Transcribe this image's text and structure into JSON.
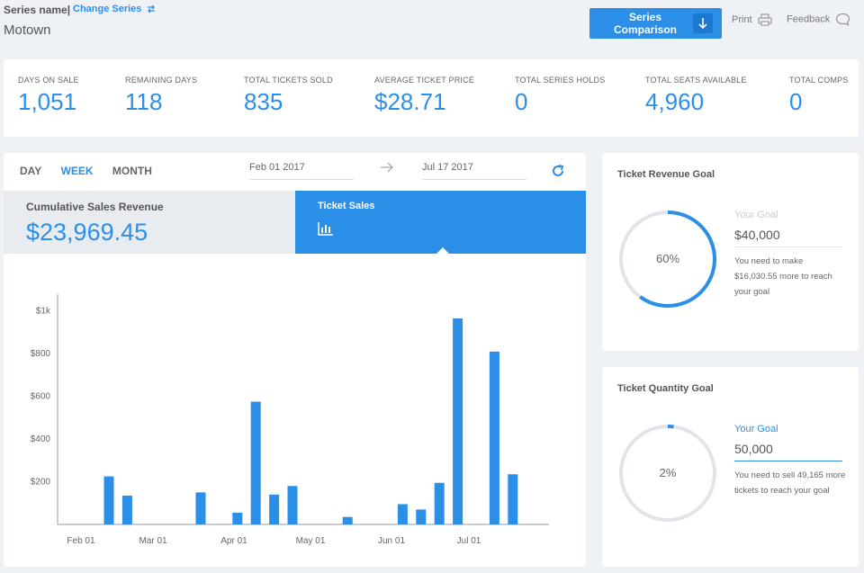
{
  "header": {
    "series_label": "Series name|",
    "change_series": "Change Series",
    "series_name": "Motown",
    "compare_line1": "Series",
    "compare_line2": "Comparison",
    "print": "Print",
    "feedback": "Feedback"
  },
  "stats": [
    {
      "label": "DAYS ON SALE",
      "value": "1,051"
    },
    {
      "label": "REMAINING DAYS",
      "value": "118"
    },
    {
      "label": "TOTAL TICKETS SOLD",
      "value": "835"
    },
    {
      "label": "AVERAGE TICKET PRICE",
      "value": "$28.71"
    },
    {
      "label": "TOTAL SERIES HOLDS",
      "value": "0"
    },
    {
      "label": "TOTAL SEATS AVAILABLE",
      "value": "4,960"
    },
    {
      "label": "TOTAL COMPS",
      "value": "0"
    }
  ],
  "panel": {
    "tabs": [
      "DAY",
      "WEEK",
      "MONTH"
    ],
    "active_tab": "WEEK",
    "start_date": "Feb 01 2017",
    "end_date": "Jul 17 2017",
    "left_tab_title": "Cumulative Sales Revenue",
    "left_tab_value": "$23,969.45",
    "right_tab_title": "Ticket Sales"
  },
  "chart_data": {
    "type": "bar",
    "yticks": [
      "$200",
      "$400",
      "$600",
      "$800",
      "$1k"
    ],
    "ylim": [
      0,
      1100
    ],
    "xticks": [
      "Feb 01",
      "Mar 01",
      "Apr 01",
      "May 01",
      "Jun 01",
      "Jul 01"
    ],
    "xlabel": "",
    "ylabel": "",
    "bars": [
      {
        "week": 3,
        "value": 225
      },
      {
        "week": 4,
        "value": 135
      },
      {
        "week": 8,
        "value": 150
      },
      {
        "week": 10,
        "value": 55
      },
      {
        "week": 11,
        "value": 575
      },
      {
        "week": 12,
        "value": 140
      },
      {
        "week": 13,
        "value": 180
      },
      {
        "week": 16,
        "value": 35
      },
      {
        "week": 19,
        "value": 95
      },
      {
        "week": 20,
        "value": 70
      },
      {
        "week": 21,
        "value": 195
      },
      {
        "week": 22,
        "value": 965
      },
      {
        "week": 24,
        "value": 810
      },
      {
        "week": 25,
        "value": 235
      }
    ],
    "grid": false,
    "legend": "none",
    "bar_color": "#2b8fe8"
  },
  "revenue_goal": {
    "title": "Ticket Revenue Goal",
    "percent_label": "60%",
    "percent": 60,
    "goal_label": "Your Goal",
    "goal_value": "$40,000",
    "note": "You need to make $16,030.55 more to reach your goal"
  },
  "quantity_goal": {
    "title": "Ticket Quantity Goal",
    "percent_label": "2%",
    "percent": 2,
    "goal_label": "Your Goal",
    "goal_value": "50,000",
    "note": "You need to sell 49,165 more tickets to reach your goal"
  },
  "colors": {
    "accent": "#2b8fe8",
    "background": "#eef1f5",
    "ring_track": "#e1e4e8"
  }
}
